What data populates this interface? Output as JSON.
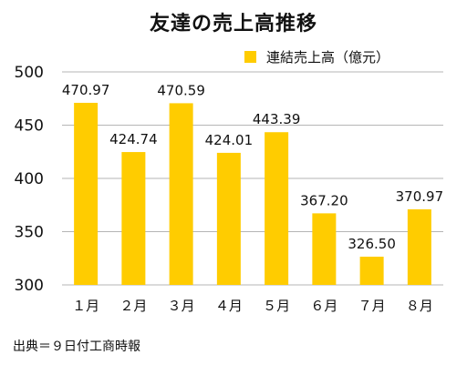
{
  "chart_data": {
    "type": "bar",
    "title": "友達の売上高推移",
    "categories": [
      "１月",
      "２月",
      "３月",
      "４月",
      "５月",
      "６月",
      "７月",
      "８月"
    ],
    "series": [
      {
        "name": "連結売上高（億元）",
        "values": [
          470.97,
          424.74,
          470.59,
          424.01,
          443.39,
          367.2,
          326.5,
          370.97
        ],
        "color": "#FFCC00"
      }
    ],
    "value_labels": [
      "470.97",
      "424.74",
      "470.59",
      "424.01",
      "443.39",
      "367.20",
      "326.50",
      "370.97"
    ],
    "ylim": [
      300,
      500
    ],
    "yticks": [
      300,
      350,
      400,
      450,
      500
    ],
    "grid": true,
    "legend": "top-right",
    "xlabel": "",
    "ylabel": ""
  },
  "source": "出典＝９日付工商時報"
}
